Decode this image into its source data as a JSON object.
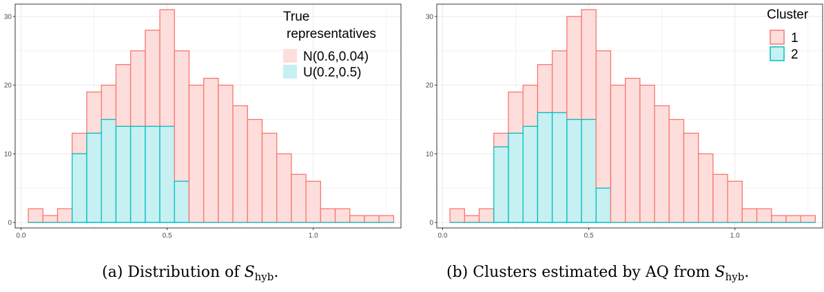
{
  "colors": {
    "normal": "#F8766D",
    "normal_fill": "#FDDEDC",
    "uniform": "#00BFC4",
    "uniform_fill": "#C6F0F1",
    "grid": "#EBEBEB",
    "panel_border": "#333333"
  },
  "chart_data": [
    {
      "type": "bar",
      "subtype": "stacked-histogram",
      "caption": {
        "prefix": "(a) Distribution of ",
        "symbol": "S",
        "subscript": "hyb",
        "suffix": "."
      },
      "xlim": [
        -0.02,
        1.3
      ],
      "ylim": [
        -0.8,
        31.8
      ],
      "xticks": [
        0.0,
        0.5,
        1.0
      ],
      "xtick_labels": [
        "0.0",
        "0.5",
        "1.0"
      ],
      "yticks": [
        0,
        10,
        20,
        30
      ],
      "ytick_labels": [
        "0",
        "10",
        "20",
        "30"
      ],
      "grid": true,
      "bin_width": 0.05,
      "bin_starts": [
        0.025,
        0.075,
        0.125,
        0.175,
        0.225,
        0.275,
        0.325,
        0.375,
        0.425,
        0.475,
        0.525,
        0.575,
        0.625,
        0.675,
        0.725,
        0.775,
        0.825,
        0.875,
        0.925,
        0.975,
        1.025,
        1.075,
        1.125,
        1.175,
        1.225
      ],
      "legend": {
        "position": "top-right",
        "title_lines": [
          "True",
          "representatives"
        ]
      },
      "series": [
        {
          "name": "N(0.6,0.04)",
          "color_key": "normal",
          "values": [
            2,
            1,
            2,
            3,
            6,
            5,
            9,
            11,
            14,
            17,
            19,
            20,
            21,
            20,
            17,
            15,
            13,
            10,
            7,
            6,
            2,
            2,
            1,
            1,
            1
          ]
        },
        {
          "name": "U(0.2,0.5)",
          "color_key": "uniform",
          "values": [
            0,
            0,
            0,
            10,
            13,
            15,
            14,
            14,
            14,
            14,
            6,
            0,
            0,
            0,
            0,
            0,
            0,
            0,
            0,
            0,
            0,
            0,
            0,
            0,
            0
          ]
        }
      ]
    },
    {
      "type": "bar",
      "subtype": "stacked-histogram",
      "caption": {
        "prefix": "(b) Clusters estimated by AQ from ",
        "symbol": "S",
        "subscript": "hyb",
        "suffix": "."
      },
      "xlim": [
        -0.02,
        1.3
      ],
      "ylim": [
        -0.8,
        31.8
      ],
      "xticks": [
        0.0,
        0.5,
        1.0
      ],
      "xtick_labels": [
        "0.0",
        "0.5",
        "1.0"
      ],
      "yticks": [
        0,
        10,
        20,
        30
      ],
      "ytick_labels": [
        "0",
        "10",
        "20",
        "30"
      ],
      "grid": true,
      "bin_width": 0.05,
      "bin_starts": [
        0.025,
        0.075,
        0.125,
        0.175,
        0.225,
        0.275,
        0.325,
        0.375,
        0.425,
        0.475,
        0.525,
        0.575,
        0.625,
        0.675,
        0.725,
        0.775,
        0.825,
        0.875,
        0.925,
        0.975,
        1.025,
        1.075,
        1.125,
        1.175,
        1.225
      ],
      "legend": {
        "position": "top-right",
        "title_lines": [
          "Cluster"
        ]
      },
      "series": [
        {
          "name": "1",
          "color_key": "normal",
          "values": [
            2,
            1,
            2,
            2,
            6,
            6,
            7,
            9,
            15,
            16,
            20,
            20,
            21,
            20,
            17,
            15,
            13,
            10,
            7,
            6,
            2,
            2,
            1,
            1,
            1
          ]
        },
        {
          "name": "2",
          "color_key": "uniform",
          "values": [
            0,
            0,
            0,
            11,
            13,
            14,
            16,
            16,
            15,
            15,
            5,
            0,
            0,
            0,
            0,
            0,
            0,
            0,
            0,
            0,
            0,
            0,
            0,
            0,
            0
          ]
        }
      ]
    }
  ]
}
